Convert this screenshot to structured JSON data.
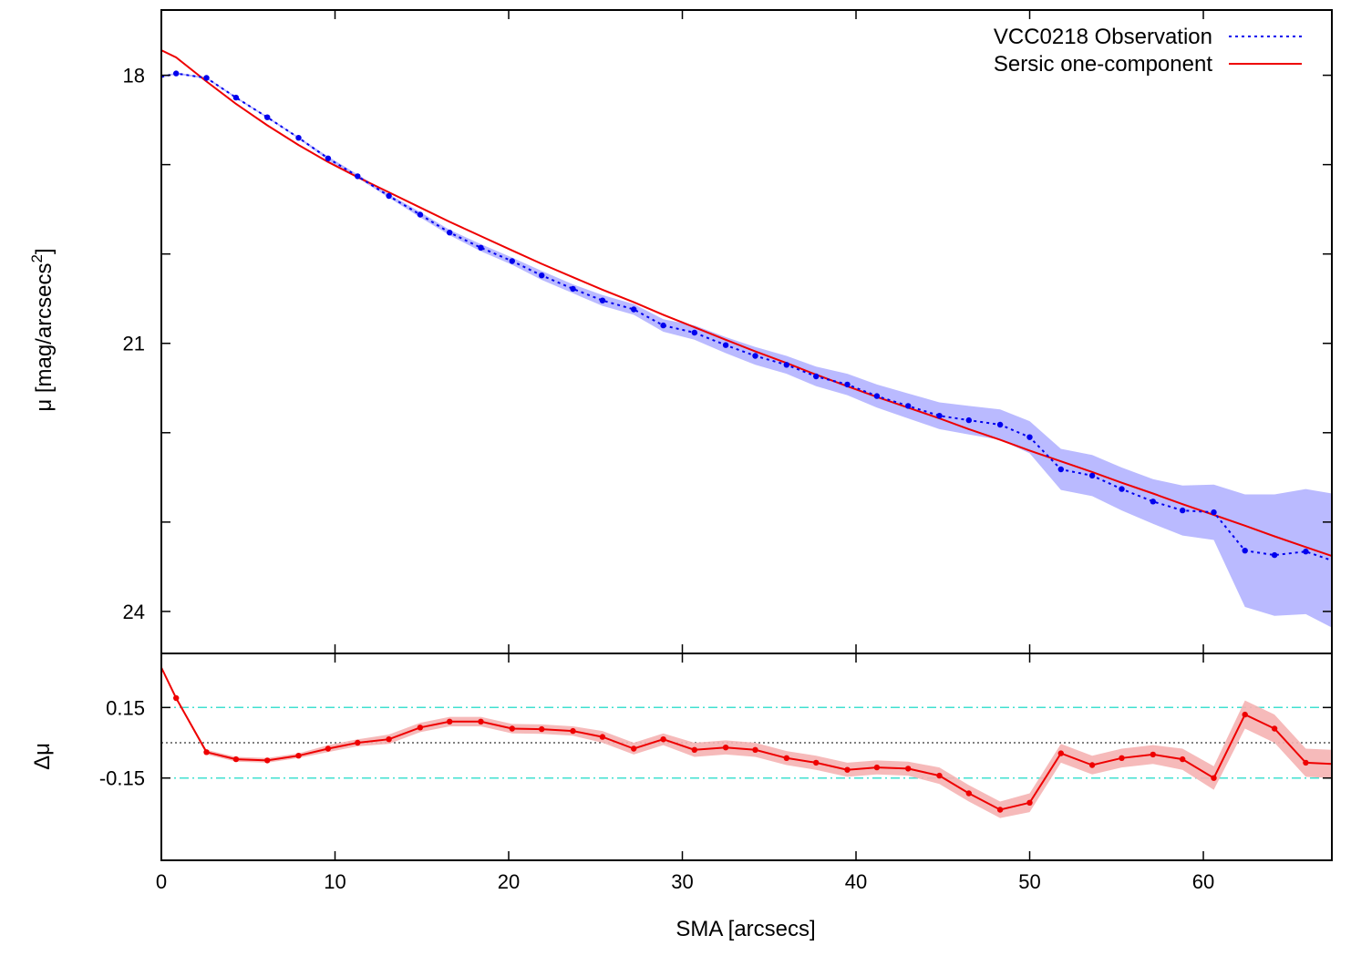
{
  "chart_data": [
    {
      "type": "line",
      "panel": "profile",
      "xlabel": "SMA [arcsecs]",
      "ylabel": "μ [mag/arcsecs",
      "ylabel_sup": "2",
      "ylabel_close": "]",
      "xlim": [
        0,
        67.4
      ],
      "ylim": [
        17.27,
        24.47
      ],
      "y_inverted": true,
      "xticks": [
        0,
        10,
        20,
        30,
        40,
        50,
        60
      ],
      "yticks": [
        18,
        21,
        24
      ],
      "yticks_minor": [
        19,
        20,
        22,
        23
      ],
      "grid": false,
      "legend_position": "top-right",
      "series": [
        {
          "name": "VCC0218 Observation",
          "style": "dotted",
          "color": "#0000ee",
          "band_color": "#b3b3ff",
          "x": [
            0,
            0.85,
            2.6,
            4.3,
            6.1,
            7.9,
            9.6,
            11.3,
            13.1,
            14.9,
            16.6,
            18.4,
            20.2,
            21.9,
            23.7,
            25.4,
            27.2,
            28.9,
            30.7,
            32.5,
            34.2,
            36.0,
            37.7,
            39.5,
            41.2,
            43.0,
            44.8,
            46.5,
            48.3,
            50.0,
            51.8,
            53.6,
            55.3,
            57.1,
            58.8,
            60.6,
            62.4,
            64.1,
            65.9,
            67.4
          ],
          "y": [
            18.02,
            17.98,
            18.03,
            18.25,
            18.47,
            18.7,
            18.93,
            19.13,
            19.35,
            19.56,
            19.76,
            19.93,
            20.08,
            20.24,
            20.39,
            20.52,
            20.62,
            20.8,
            20.88,
            21.02,
            21.14,
            21.24,
            21.37,
            21.46,
            21.59,
            21.7,
            21.81,
            21.86,
            21.91,
            22.05,
            22.41,
            22.48,
            22.63,
            22.77,
            22.87,
            22.89,
            23.32,
            23.37,
            23.33,
            23.43
          ],
          "err": [
            0.01,
            0.01,
            0.01,
            0.01,
            0.01,
            0.01,
            0.02,
            0.02,
            0.02,
            0.03,
            0.03,
            0.04,
            0.04,
            0.05,
            0.05,
            0.06,
            0.06,
            0.07,
            0.08,
            0.09,
            0.1,
            0.1,
            0.11,
            0.12,
            0.13,
            0.14,
            0.15,
            0.16,
            0.17,
            0.18,
            0.23,
            0.23,
            0.24,
            0.25,
            0.28,
            0.31,
            0.63,
            0.68,
            0.7,
            0.75
          ]
        },
        {
          "name": "Sersic one-component",
          "style": "solid",
          "color": "#ee0000",
          "x": [
            0,
            0.85,
            2.6,
            4.3,
            6.1,
            7.9,
            9.6,
            11.3,
            13.1,
            14.9,
            16.6,
            18.4,
            20.2,
            21.9,
            23.7,
            25.4,
            27.2,
            28.9,
            30.7,
            32.5,
            34.2,
            36.0,
            37.7,
            39.5,
            41.2,
            43.0,
            44.8,
            46.5,
            48.3,
            50.0,
            51.8,
            53.6,
            55.3,
            57.1,
            58.8,
            60.6,
            62.4,
            64.1,
            65.9,
            67.4
          ],
          "y": [
            17.72,
            17.8,
            18.07,
            18.32,
            18.56,
            18.78,
            18.97,
            19.14,
            19.31,
            19.48,
            19.64,
            19.8,
            19.96,
            20.11,
            20.26,
            20.4,
            20.54,
            20.68,
            20.82,
            20.96,
            21.09,
            21.22,
            21.35,
            21.48,
            21.6,
            21.72,
            21.84,
            21.96,
            22.08,
            22.2,
            22.32,
            22.44,
            22.56,
            22.68,
            22.8,
            22.92,
            23.04,
            23.16,
            23.28,
            23.38
          ]
        }
      ]
    },
    {
      "type": "line",
      "panel": "residual",
      "xlabel": "SMA [arcsecs]",
      "ylabel": "Δμ",
      "xlim": [
        0,
        67.4
      ],
      "ylim": [
        -0.5,
        0.38
      ],
      "yticks": [
        0.15,
        -0.15
      ],
      "ytick_labels": [
        "0.15",
        "-0.15"
      ],
      "reference_lines": [
        {
          "y": 0.15,
          "style": "dash-dot",
          "color": "#40e0d0"
        },
        {
          "y": -0.15,
          "style": "dash-dot",
          "color": "#40e0d0"
        },
        {
          "y": 0,
          "style": "dotted",
          "color": "#000000"
        }
      ],
      "series": [
        {
          "name": "",
          "color": "#ee0000",
          "band_color": "#f5b3b3",
          "x": [
            0,
            0.85,
            2.6,
            4.3,
            6.1,
            7.9,
            9.6,
            11.3,
            13.1,
            14.9,
            16.6,
            18.4,
            20.2,
            21.9,
            23.7,
            25.4,
            27.2,
            28.9,
            30.7,
            32.5,
            34.2,
            36.0,
            37.7,
            39.5,
            41.2,
            43.0,
            44.8,
            46.5,
            48.3,
            50.0,
            51.8,
            53.6,
            55.3,
            57.1,
            58.8,
            60.6,
            62.4,
            64.1,
            65.9,
            67.4
          ],
          "y": [
            0.32,
            0.19,
            -0.04,
            -0.07,
            -0.075,
            -0.055,
            -0.025,
            0.0,
            0.015,
            0.065,
            0.09,
            0.09,
            0.06,
            0.058,
            0.05,
            0.025,
            -0.025,
            0.015,
            -0.03,
            -0.02,
            -0.03,
            -0.065,
            -0.085,
            -0.115,
            -0.105,
            -0.11,
            -0.14,
            -0.215,
            -0.285,
            -0.255,
            -0.045,
            -0.095,
            -0.065,
            -0.05,
            -0.07,
            -0.15,
            0.12,
            0.06,
            -0.085,
            -0.09
          ],
          "err": [
            0.005,
            0.005,
            0.01,
            0.01,
            0.01,
            0.01,
            0.015,
            0.015,
            0.02,
            0.02,
            0.02,
            0.02,
            0.02,
            0.02,
            0.02,
            0.025,
            0.025,
            0.025,
            0.03,
            0.03,
            0.03,
            0.03,
            0.03,
            0.03,
            0.03,
            0.03,
            0.035,
            0.035,
            0.035,
            0.04,
            0.04,
            0.04,
            0.04,
            0.04,
            0.045,
            0.05,
            0.06,
            0.06,
            0.06,
            0.06
          ]
        }
      ]
    }
  ]
}
